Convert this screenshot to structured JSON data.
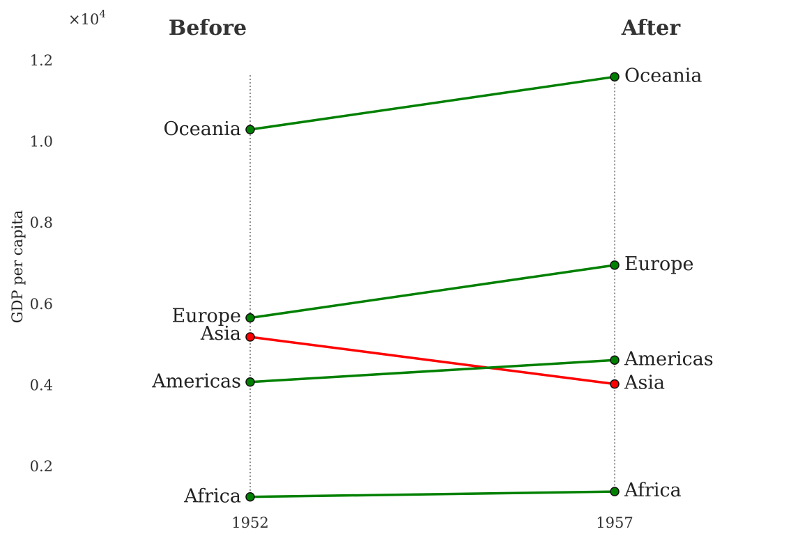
{
  "chart_data": {
    "type": "slope",
    "ylabel": "GDP per capita",
    "y_multiplier_label": "×10",
    "y_multiplier_exponent": "4",
    "y_scale_factor": 10000,
    "ylim": [
      1100,
      12500
    ],
    "yticks": [
      2000,
      4000,
      6000,
      8000,
      10000,
      12000
    ],
    "ytick_labels": [
      "0.2",
      "0.4",
      "0.6",
      "0.8",
      "1.0",
      "1.2"
    ],
    "headers": {
      "left": "Before",
      "right": "After"
    },
    "x": [
      "1952",
      "1957"
    ],
    "series": [
      {
        "name": "Oceania",
        "values": [
          10300,
          11600
        ],
        "color": "#008000"
      },
      {
        "name": "Europe",
        "values": [
          5660,
          6960
        ],
        "color": "#008000"
      },
      {
        "name": "Asia",
        "values": [
          5190,
          4030
        ],
        "color": "#ff0000"
      },
      {
        "name": "Americas",
        "values": [
          4080,
          4620
        ],
        "color": "#008000"
      },
      {
        "name": "Africa",
        "values": [
          1250,
          1380
        ],
        "color": "#008000"
      }
    ]
  }
}
